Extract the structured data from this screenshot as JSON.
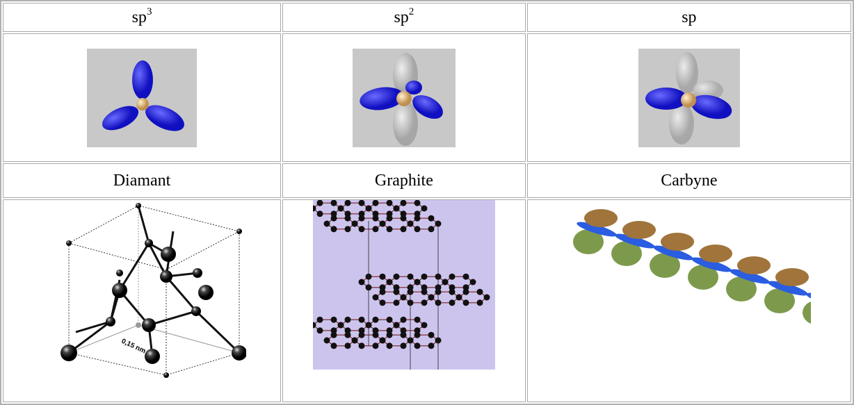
{
  "header": [
    {
      "base": "sp",
      "sup": "3"
    },
    {
      "base": "sp",
      "sup": "2"
    },
    {
      "base": "sp"
    }
  ],
  "names": [
    "Diamant",
    "Graphite",
    "Carbyne"
  ],
  "annotations": {
    "diamond_bond_length": "0,15 nm"
  }
}
